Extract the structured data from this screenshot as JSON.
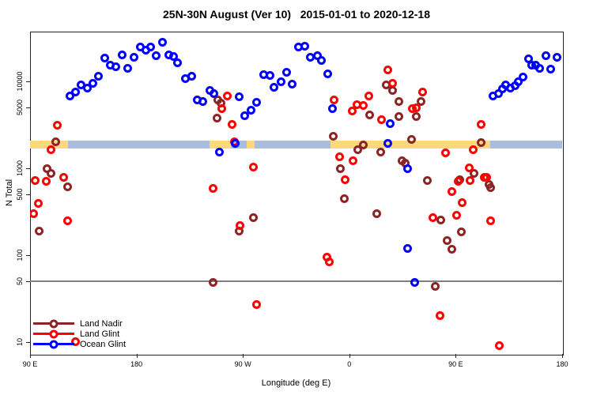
{
  "chart_data": {
    "type": "scatter",
    "title": "25N-30N August (Ver 10)   2015-01-01 to 2020-12-18",
    "xlabel": "Longitude (deg E)",
    "ylabel": "N Total",
    "x_axis": {
      "range": [
        0,
        450
      ],
      "unit": "degrees along axis from 90E (wraps around globe 1.25 turns)",
      "ticks": [
        {
          "t": 0,
          "label": "90 E"
        },
        {
          "t": 90,
          "label": "180"
        },
        {
          "t": 180,
          "label": "90 W"
        },
        {
          "t": 270,
          "label": "0"
        },
        {
          "t": 360,
          "label": "90 E"
        },
        {
          "t": 450,
          "label": "180"
        }
      ]
    },
    "y_axis": {
      "scale": "log",
      "range": [
        7.5,
        37000
      ],
      "ticks": [
        10,
        50,
        100,
        500,
        1000,
        5000,
        10000
      ]
    },
    "reference_line": {
      "n": 50,
      "color": "#7f7f7f"
    },
    "band": {
      "n_low": 1700,
      "n_high": 2100,
      "base_color": "#A9BEDC",
      "segment_color": "#FFD87E",
      "segments_deg": [
        [
          0,
          32
        ],
        [
          152,
          170
        ],
        [
          183,
          190
        ],
        [
          254,
          389
        ]
      ]
    },
    "series": [
      {
        "name": "Land Nadir",
        "color": "#8B2525",
        "points": [
          [
            22,
            2000
          ],
          [
            14.7,
            980
          ],
          [
            18,
            863
          ],
          [
            32,
            605
          ],
          [
            8,
            187
          ],
          [
            159.3,
            6050
          ],
          [
            162,
            5560
          ],
          [
            158.7,
            3740
          ],
          [
            189.3,
            267
          ],
          [
            177.3,
            187
          ],
          [
            155.3,
            48
          ],
          [
            256.7,
            2310
          ],
          [
            262.7,
            980
          ],
          [
            266,
            442
          ],
          [
            277.3,
            1620
          ],
          [
            301.3,
            9010
          ],
          [
            306.7,
            7780
          ],
          [
            312,
            5810
          ],
          [
            287.3,
            4060
          ],
          [
            312,
            3900
          ],
          [
            326.7,
            3900
          ],
          [
            331.3,
            5810
          ],
          [
            322.7,
            2120
          ],
          [
            382,
            1950
          ],
          [
            282,
            1840
          ],
          [
            296.7,
            1520
          ],
          [
            314.7,
            1210
          ],
          [
            317.3,
            1130
          ],
          [
            336,
            716
          ],
          [
            348,
            251
          ],
          [
            364,
            731
          ],
          [
            365.3,
            183
          ],
          [
            353.3,
            146
          ],
          [
            357.3,
            116
          ],
          [
            342.7,
            43
          ],
          [
            376,
            863
          ],
          [
            388.7,
            644
          ],
          [
            390,
            593
          ],
          [
            293.3,
            297
          ]
        ]
      },
      {
        "name": "Land Glint",
        "color": "#FF0000",
        "points": [
          [
            23.3,
            3100
          ],
          [
            18,
            1620
          ],
          [
            4.7,
            715
          ],
          [
            14,
            700
          ],
          [
            28.7,
            778
          ],
          [
            7.3,
            390
          ],
          [
            3.3,
            297
          ],
          [
            32,
            246
          ],
          [
            167.3,
            6720
          ],
          [
            162.7,
            4810
          ],
          [
            171.3,
            3160
          ],
          [
            173.3,
            2000
          ],
          [
            189.3,
            1020
          ],
          [
            155.3,
            581
          ],
          [
            178,
            217
          ],
          [
            192,
            27
          ],
          [
            251.3,
            94
          ],
          [
            253.3,
            83
          ],
          [
            262,
            1340
          ],
          [
            273.3,
            1210
          ],
          [
            266.7,
            731
          ],
          [
            257.3,
            6050
          ],
          [
            272.7,
            4520
          ],
          [
            276.7,
            5340
          ],
          [
            282,
            5220
          ],
          [
            286.7,
            6720
          ],
          [
            302.7,
            13400
          ],
          [
            306.7,
            9390
          ],
          [
            297.3,
            3580
          ],
          [
            332,
            7460
          ],
          [
            326.7,
            4910
          ],
          [
            323.3,
            4810
          ],
          [
            352,
            1490
          ],
          [
            375.3,
            1620
          ],
          [
            382,
            3160
          ],
          [
            362.7,
            700
          ],
          [
            372.7,
            716
          ],
          [
            386.7,
            778
          ],
          [
            357.3,
            533
          ],
          [
            366,
            398
          ],
          [
            361.3,
            285
          ],
          [
            390,
            246
          ],
          [
            341.3,
            267
          ],
          [
            372,
            1000
          ],
          [
            384.7,
            778
          ],
          [
            347.3,
            20
          ],
          [
            397.3,
            9
          ],
          [
            38.7,
            10
          ]
        ]
      },
      {
        "name": "Ocean Glint",
        "color": "#0000FF",
        "points": [
          [
            34,
            6720
          ],
          [
            38.7,
            7460
          ],
          [
            43.3,
            9010
          ],
          [
            48.7,
            8280
          ],
          [
            53.3,
            9390
          ],
          [
            58,
            11300
          ],
          [
            63.3,
            18400
          ],
          [
            68,
            15200
          ],
          [
            72.7,
            14600
          ],
          [
            78,
            20000
          ],
          [
            82.7,
            14000
          ],
          [
            88,
            18700
          ],
          [
            93.3,
            24600
          ],
          [
            98,
            22600
          ],
          [
            102,
            24600
          ],
          [
            106.7,
            19500
          ],
          [
            112,
            27900
          ],
          [
            118,
            20000
          ],
          [
            122,
            19100
          ],
          [
            125.3,
            16200
          ],
          [
            132,
            10600
          ],
          [
            137.3,
            11300
          ],
          [
            142,
            6050
          ],
          [
            146.7,
            5810
          ],
          [
            152.7,
            7780
          ],
          [
            156,
            7160
          ],
          [
            177.3,
            6580
          ],
          [
            182,
            3980
          ],
          [
            187.3,
            4610
          ],
          [
            192,
            5690
          ],
          [
            198,
            11800
          ],
          [
            203.3,
            11600
          ],
          [
            206.7,
            8450
          ],
          [
            212.7,
            9790
          ],
          [
            217.3,
            12600
          ],
          [
            222,
            9200
          ],
          [
            227.3,
            24600
          ],
          [
            232.7,
            25100
          ],
          [
            237.3,
            18700
          ],
          [
            243.3,
            19500
          ],
          [
            246.7,
            17200
          ],
          [
            252,
            12100
          ],
          [
            256,
            4810
          ],
          [
            174,
            1910
          ],
          [
            160.7,
            1520
          ],
          [
            304.7,
            3230
          ],
          [
            302.7,
            1910
          ],
          [
            319.3,
            980
          ],
          [
            319.3,
            118
          ],
          [
            325.3,
            48
          ],
          [
            392,
            6720
          ],
          [
            396.7,
            7160
          ],
          [
            400,
            8110
          ],
          [
            402.7,
            9010
          ],
          [
            406.7,
            8280
          ],
          [
            410.7,
            8810
          ],
          [
            413.3,
            9790
          ],
          [
            417.3,
            11100
          ],
          [
            422,
            18000
          ],
          [
            424.7,
            15200
          ],
          [
            428,
            15200
          ],
          [
            431.3,
            14000
          ],
          [
            436.7,
            19500
          ],
          [
            440.7,
            13700
          ],
          [
            446,
            18700
          ]
        ]
      }
    ],
    "legend": {
      "position": "bottom-left"
    }
  }
}
